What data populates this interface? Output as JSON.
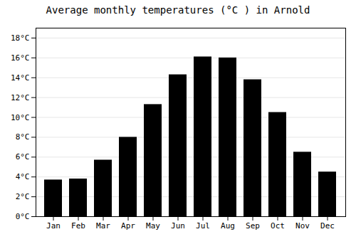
{
  "chart_data": {
    "type": "bar",
    "title": "Average monthly temperatures (°C ) in Arnold",
    "categories": [
      "Jan",
      "Feb",
      "Mar",
      "Apr",
      "May",
      "Jun",
      "Jul",
      "Aug",
      "Sep",
      "Oct",
      "Nov",
      "Dec"
    ],
    "values": [
      3.7,
      3.8,
      5.7,
      8.0,
      11.3,
      14.3,
      16.1,
      16.0,
      13.8,
      10.5,
      6.5,
      4.5
    ],
    "ylim": [
      0,
      19
    ],
    "yticks": [
      {
        "value": 0,
        "label": "0°C"
      },
      {
        "value": 2,
        "label": "2°C"
      },
      {
        "value": 4,
        "label": "4°C"
      },
      {
        "value": 6,
        "label": "6°C"
      },
      {
        "value": 8,
        "label": "8°C"
      },
      {
        "value": 10,
        "label": "10°C"
      },
      {
        "value": 12,
        "label": "12°C"
      },
      {
        "value": 14,
        "label": "14°C"
      },
      {
        "value": 16,
        "label": "16°C"
      },
      {
        "value": 18,
        "label": "18°C"
      }
    ],
    "grid": true
  }
}
